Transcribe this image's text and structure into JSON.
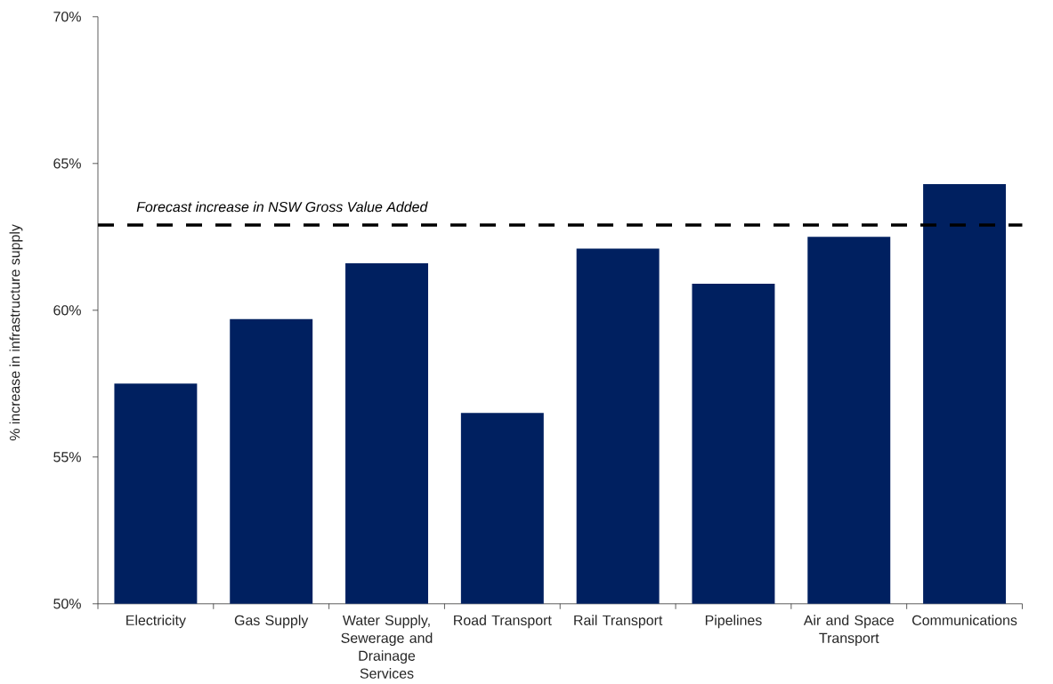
{
  "chart_data": {
    "type": "bar",
    "ylabel": "% increase in infrastructure supply",
    "categories": [
      "Electricity",
      "Gas Supply",
      "Water Supply, Sewerage and Drainage Services",
      "Road Transport",
      "Rail Transport",
      "Pipelines",
      "Air and Space Transport",
      "Communications"
    ],
    "values": [
      57.5,
      59.7,
      61.6,
      56.5,
      62.1,
      60.9,
      62.5,
      64.3
    ],
    "color": "#002060",
    "ylim": [
      50,
      70
    ],
    "yticks": [
      {
        "value": 50,
        "label": "50%"
      },
      {
        "value": 55,
        "label": "55%"
      },
      {
        "value": 60,
        "label": "60%"
      },
      {
        "value": 65,
        "label": "65%"
      },
      {
        "value": 70,
        "label": "70%"
      }
    ],
    "ref_lines": [
      {
        "axis": "y",
        "value": 62.9,
        "label": "Forecast increase in NSW Gross Value Added",
        "color": "#000000",
        "line_style": "dashed"
      }
    ]
  }
}
